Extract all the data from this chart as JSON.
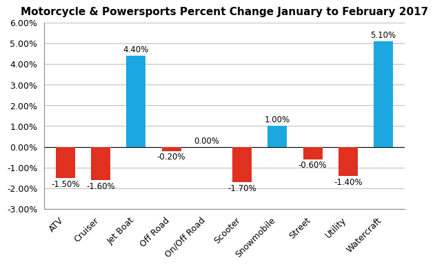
{
  "title": "Motorcycle & Powersports Percent Change January to February 2017",
  "categories": [
    "ATV",
    "Cruiser",
    "Jet Boat",
    "Off Road",
    "On/Off Road",
    "Scooter",
    "Snowmobile",
    "Street",
    "Utility",
    "Watercraft"
  ],
  "values": [
    -1.5,
    -1.6,
    4.4,
    -0.2,
    0.0,
    -1.7,
    1.0,
    -0.6,
    -1.4,
    5.1
  ],
  "bar_color_positive": "#1BA8E0",
  "bar_color_negative": "#E03020",
  "ylim": [
    -3.0,
    6.0
  ],
  "yticks": [
    -3.0,
    -2.0,
    -1.0,
    0.0,
    1.0,
    2.0,
    3.0,
    4.0,
    5.0,
    6.0
  ],
  "title_fontsize": 11,
  "label_fontsize": 8.5,
  "tick_fontsize": 9,
  "background_color": "#FFFFFF",
  "grid_color": "#C0C0C0",
  "bar_width": 0.55
}
